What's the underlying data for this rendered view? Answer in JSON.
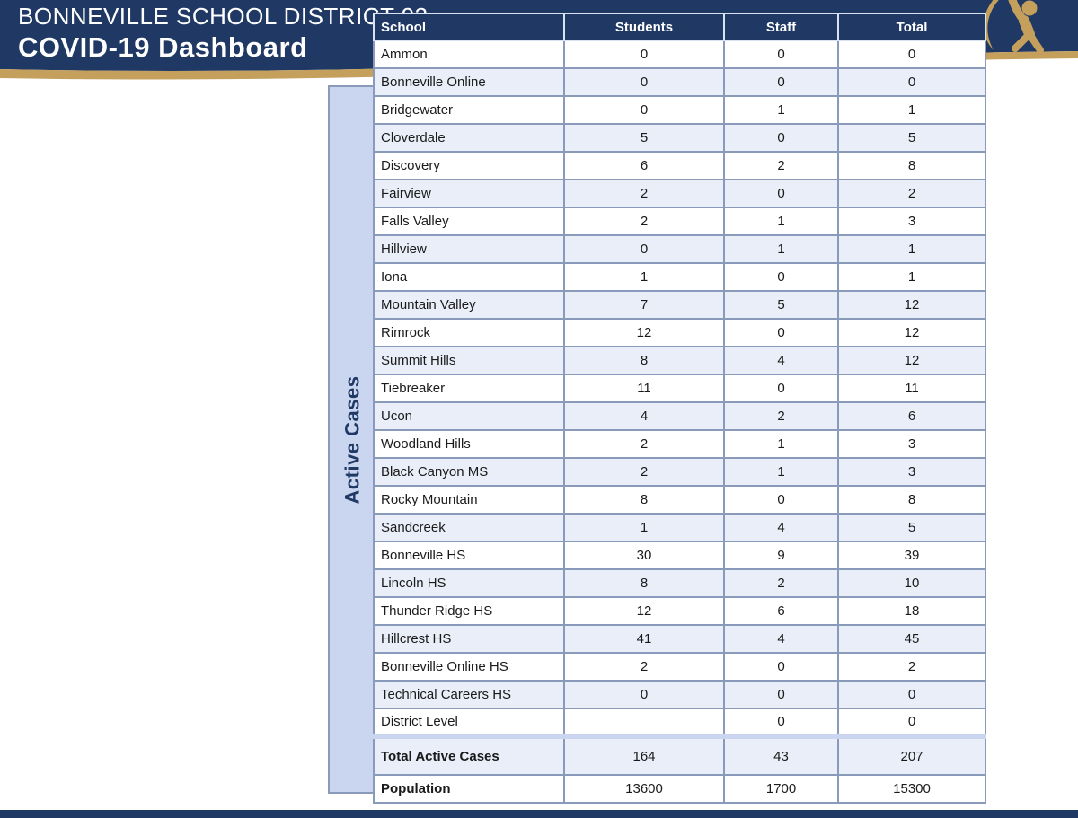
{
  "header": {
    "district_name": "BONNEVILLE SCHOOL DISTRICT 93",
    "dashboard_title": "COVID-19 Dashboard"
  },
  "sidebar": {
    "label": "Active Cases"
  },
  "logo": {
    "name": "district-figure-logo"
  },
  "table": {
    "columns": [
      "School",
      "Students",
      "Staff",
      "Total"
    ],
    "rows": [
      {
        "school": "Ammon",
        "students": "0",
        "staff": "0",
        "total": "0"
      },
      {
        "school": "Bonneville Online",
        "students": "0",
        "staff": "0",
        "total": "0"
      },
      {
        "school": "Bridgewater",
        "students": "0",
        "staff": "1",
        "total": "1"
      },
      {
        "school": "Cloverdale",
        "students": "5",
        "staff": "0",
        "total": "5"
      },
      {
        "school": "Discovery",
        "students": "6",
        "staff": "2",
        "total": "8"
      },
      {
        "school": "Fairview",
        "students": "2",
        "staff": "0",
        "total": "2"
      },
      {
        "school": "Falls Valley",
        "students": "2",
        "staff": "1",
        "total": "3"
      },
      {
        "school": "Hillview",
        "students": "0",
        "staff": "1",
        "total": "1"
      },
      {
        "school": "Iona",
        "students": "1",
        "staff": "0",
        "total": "1"
      },
      {
        "school": "Mountain Valley",
        "students": "7",
        "staff": "5",
        "total": "12"
      },
      {
        "school": "Rimrock",
        "students": "12",
        "staff": "0",
        "total": "12"
      },
      {
        "school": "Summit Hills",
        "students": "8",
        "staff": "4",
        "total": "12"
      },
      {
        "school": "Tiebreaker",
        "students": "11",
        "staff": "0",
        "total": "11"
      },
      {
        "school": "Ucon",
        "students": "4",
        "staff": "2",
        "total": "6"
      },
      {
        "school": "Woodland Hills",
        "students": "2",
        "staff": "1",
        "total": "3"
      },
      {
        "school": "Black Canyon MS",
        "students": "2",
        "staff": "1",
        "total": "3"
      },
      {
        "school": "Rocky Mountain",
        "students": "8",
        "staff": "0",
        "total": "8"
      },
      {
        "school": "Sandcreek",
        "students": "1",
        "staff": "4",
        "total": "5"
      },
      {
        "school": "Bonneville HS",
        "students": "30",
        "staff": "9",
        "total": "39"
      },
      {
        "school": "Lincoln HS",
        "students": "8",
        "staff": "2",
        "total": "10"
      },
      {
        "school": "Thunder Ridge HS",
        "students": "12",
        "staff": "6",
        "total": "18"
      },
      {
        "school": "Hillcrest HS",
        "students": "41",
        "staff": "4",
        "total": "45"
      },
      {
        "school": "Bonneville Online HS",
        "students": "2",
        "staff": "0",
        "total": "2"
      },
      {
        "school": "Technical Careers HS",
        "students": "0",
        "staff": "0",
        "total": "0"
      },
      {
        "school": "District Level",
        "students": "",
        "staff": "0",
        "total": "0"
      }
    ],
    "summary": [
      {
        "school": "Total Active Cases",
        "students": "164",
        "staff": "43",
        "total": "207"
      },
      {
        "school": "Population",
        "students": "13600",
        "staff": "1700",
        "total": "15300"
      }
    ]
  },
  "colors": {
    "navy": "#1F3864",
    "gold": "#C5A05C",
    "row_alt": "#E9EEF8",
    "sidebar_bg": "#CAD6F0",
    "grid_border": "#8A9ABB"
  }
}
